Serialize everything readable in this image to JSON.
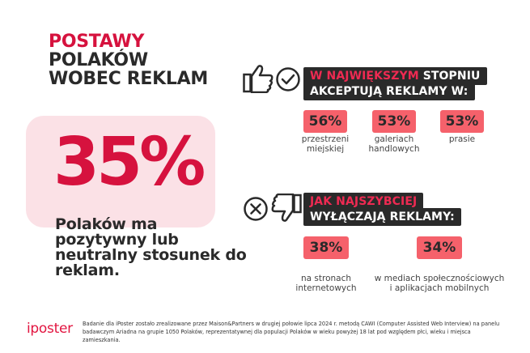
{
  "title": {
    "line1": "POSTAWY",
    "line2": "POLAKÓW",
    "line3": "WOBEC REKLAM"
  },
  "main_stat": {
    "value": "35%",
    "text": "Polaków ma pozytywny lub neutralny stosunek do reklam."
  },
  "accept_section": {
    "header_red": "W NAJWIĘKSZYM",
    "header_rest": " STOPNIU",
    "header_line2": "AKCEPTUJĄ REKLAMY W:",
    "items": [
      {
        "value": "56%",
        "label_1": "przestrzeni",
        "label_2": "miejskiej"
      },
      {
        "value": "53%",
        "label_1": "galeriach",
        "label_2": "handlowych"
      },
      {
        "value": "53%",
        "label_1": "prasie",
        "label_2": ""
      }
    ]
  },
  "block_section": {
    "header_line1": "JAK NAJSZYBCIEJ",
    "header_line2": "WYŁĄCZAJĄ REKLAMY:",
    "items": [
      {
        "value": "38%",
        "label_1": "na stronach",
        "label_2": "internetowych"
      },
      {
        "value": "34%",
        "label_1": "w mediach społecznościowych",
        "label_2": "i aplikacjach mobilnych"
      }
    ]
  },
  "footer": {
    "logo": "iposter",
    "note": "Badanie dla iPoster zostało zrealizowane przez Maison&Partners w drugiej połowie lipca 2024 r. metodą CAWI (Computer Assisted Web Interview) na panelu badawczym Ariadna na grupie 1050 Polaków, reprezentatywnej dla populacji Polaków w wieku powyżej 18 lat pod względem płci, wieku i miejsca zamieszkania."
  },
  "colors": {
    "accent_red": "#d6123e",
    "pill_red": "#f5616b",
    "dark": "#2a2a2a",
    "pink_bg": "#fbe1e6"
  },
  "icons": [
    "thumbs-up-icon",
    "check-circle-icon",
    "x-circle-icon",
    "thumbs-down-icon"
  ]
}
